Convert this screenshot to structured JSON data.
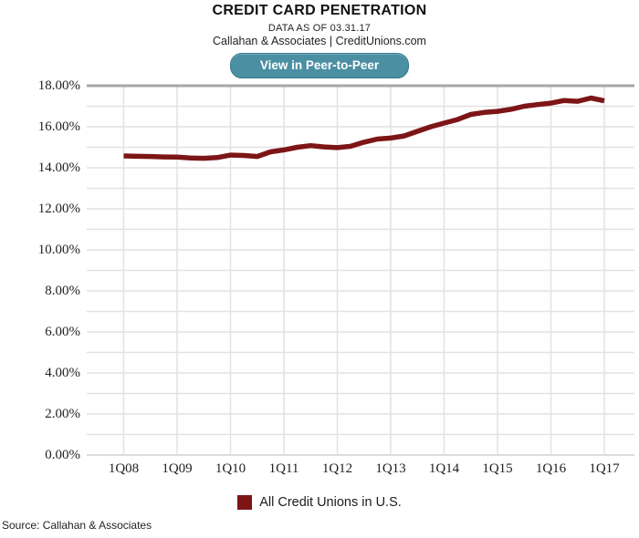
{
  "header": {
    "title": "CREDIT CARD PENETRATION",
    "subtitle1": "DATA AS OF 03.31.17",
    "subtitle2": "Callahan & Associates | CreditUnions.com"
  },
  "button": {
    "label": "View in Peer-to-Peer"
  },
  "legend": {
    "label": "All Credit Unions in U.S."
  },
  "source": "Source: Callahan & Associates",
  "colors": {
    "line": "#7d1517",
    "legend_swatch": "#7d1517",
    "button_bg": "#4b8fa3",
    "button_border": "#37788d",
    "grid": "#e2e2e2",
    "plot_top_border": "#a6a6a6",
    "axis_bottom_line": "#d0d0d0"
  },
  "chart_data": {
    "type": "line",
    "title": "CREDIT CARD PENETRATION",
    "subtitle": "DATA AS OF 03.31.17",
    "xlabel": "",
    "ylabel": "",
    "ylim": [
      0,
      18
    ],
    "y_major_step": 2,
    "y_minor_step": 1,
    "grid": true,
    "legend_position": "bottom",
    "y_tick_labels": [
      "18.00%",
      "16.00%",
      "14.00%",
      "12.00%",
      "10.00%",
      "8.00%",
      "6.00%",
      "4.00%",
      "2.00%",
      "0.00%"
    ],
    "x_tick_labels": [
      "1Q08",
      "1Q09",
      "1Q10",
      "1Q11",
      "1Q12",
      "1Q13",
      "1Q14",
      "1Q15",
      "1Q16",
      "1Q17"
    ],
    "series": [
      {
        "name": "All Credit Unions in U.S.",
        "x": [
          "1Q08",
          "2Q08",
          "3Q08",
          "4Q08",
          "1Q09",
          "2Q09",
          "3Q09",
          "4Q09",
          "1Q10",
          "2Q10",
          "3Q10",
          "4Q10",
          "1Q11",
          "2Q11",
          "3Q11",
          "4Q11",
          "1Q12",
          "2Q12",
          "3Q12",
          "4Q12",
          "1Q13",
          "2Q13",
          "3Q13",
          "4Q13",
          "1Q14",
          "2Q14",
          "3Q14",
          "4Q14",
          "1Q15",
          "2Q15",
          "3Q15",
          "4Q15",
          "1Q16",
          "2Q16",
          "3Q16",
          "4Q16",
          "1Q17"
        ],
        "values": [
          14.58,
          14.56,
          14.55,
          14.53,
          14.52,
          14.48,
          14.46,
          14.5,
          14.62,
          14.6,
          14.55,
          14.78,
          14.87,
          15.0,
          15.08,
          15.02,
          14.98,
          15.05,
          15.25,
          15.4,
          15.45,
          15.55,
          15.78,
          16.0,
          16.18,
          16.35,
          16.6,
          16.7,
          16.75,
          16.85,
          17.0,
          17.08,
          17.15,
          17.28,
          17.24,
          17.4,
          17.26
        ]
      }
    ]
  }
}
